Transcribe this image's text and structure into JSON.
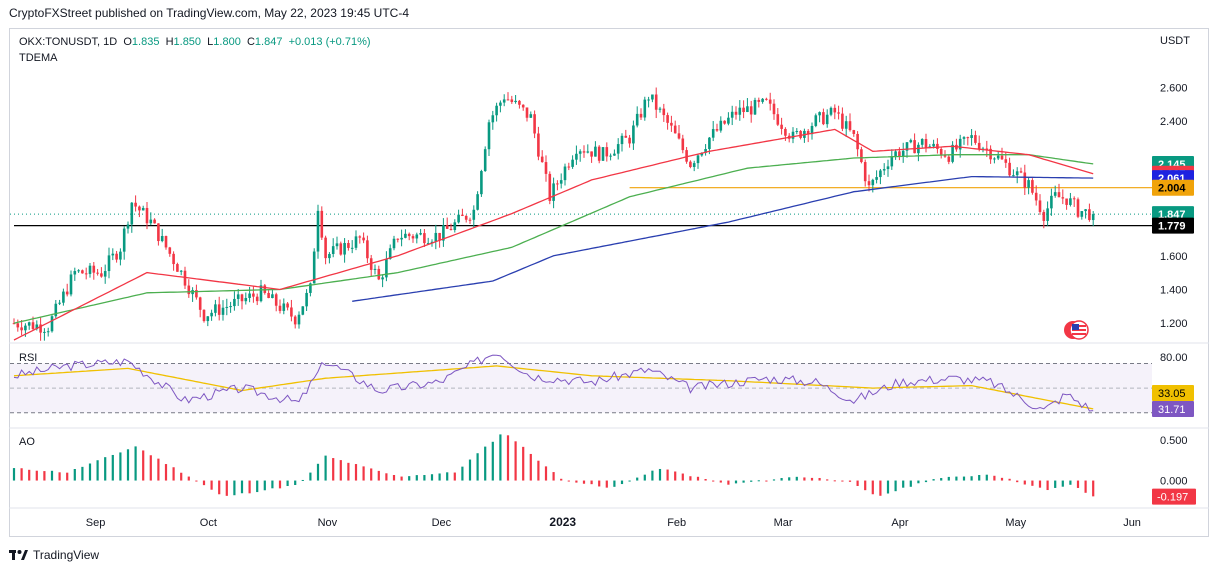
{
  "header": {
    "attribution": "CryptoFXStreet published on TradingView.com, May 22, 2023 19:45 UTC-4"
  },
  "legend": {
    "symbol": "OKX:TONUSDT, 1D",
    "open_label": "O",
    "open": "1.835",
    "high_label": "H",
    "high": "1.850",
    "low_label": "L",
    "low": "1.800",
    "close_label": "C",
    "close": "1.847",
    "change": "+0.013 (+0.71%)",
    "indicator": "TDEMA"
  },
  "footer": {
    "brand": "TradingView",
    "logo_icon": "tradingview-logo-icon"
  },
  "flag_icon": "us-flag-icon",
  "chart_data": [
    {
      "type": "candlestick",
      "pane": "price",
      "currency_label": "USDT",
      "y_ticks": [
        1.2,
        1.4,
        1.6,
        1.8,
        2.0,
        2.2,
        2.4,
        2.6
      ],
      "y_tick_labels": [
        "1.200",
        "1.400",
        "1.600",
        "",
        "",
        "",
        "2.400",
        "2.600"
      ],
      "ylim": [
        1.1,
        2.94
      ],
      "x_ticks": [
        "Sep",
        "Oct",
        "Nov",
        "Dec",
        "2023",
        "Feb",
        "Mar",
        "Apr",
        "May",
        "Jun"
      ],
      "x_start": "2022-08-11",
      "colors": {
        "up": "#089981",
        "down": "#f23645",
        "ema_red": "#f23645",
        "ema_green": "#4caf50",
        "ema_blue": "#2a3fb0",
        "level": "#f0a30a"
      },
      "price_labels": [
        {
          "value": "2.145",
          "color": "#089981"
        },
        {
          "value": "2.087",
          "color": "#f23645"
        },
        {
          "value": "2.061",
          "color": "#1e22e0"
        },
        {
          "value": "2.004",
          "color": "#f0a30a"
        },
        {
          "value": "1.847",
          "color": "#089981"
        },
        {
          "value": "1.779",
          "color": "#000000"
        }
      ],
      "horizontal_levels": [
        {
          "value": 2.004,
          "color": "#f0a30a",
          "from": "2023-01-20"
        },
        {
          "value": 1.779,
          "color": "#000000",
          "from": "2022-08-11"
        }
      ],
      "close_anchors": [
        [
          "2022-08-11",
          1.2
        ],
        [
          "2022-08-20",
          1.18
        ],
        [
          "2022-08-27",
          1.5
        ],
        [
          "2022-09-03",
          1.5
        ],
        [
          "2022-09-08",
          1.65
        ],
        [
          "2022-09-11",
          1.92
        ],
        [
          "2022-09-16",
          1.8
        ],
        [
          "2022-09-24",
          1.5
        ],
        [
          "2022-09-30",
          1.25
        ],
        [
          "2022-10-06",
          1.3
        ],
        [
          "2022-10-15",
          1.38
        ],
        [
          "2022-10-24",
          1.23
        ],
        [
          "2022-10-28",
          1.4
        ],
        [
          "2022-10-30",
          1.9
        ],
        [
          "2022-11-01",
          1.6
        ],
        [
          "2022-11-10",
          1.7
        ],
        [
          "2022-11-15",
          1.45
        ],
        [
          "2022-11-20",
          1.72
        ],
        [
          "2022-12-01",
          1.72
        ],
        [
          "2022-12-10",
          1.87
        ],
        [
          "2022-12-14",
          2.4
        ],
        [
          "2022-12-18",
          2.55
        ],
        [
          "2022-12-25",
          2.42
        ],
        [
          "2022-12-30",
          1.95
        ],
        [
          "2023-01-06",
          2.25
        ],
        [
          "2023-01-13",
          2.2
        ],
        [
          "2023-01-20",
          2.3
        ],
        [
          "2023-01-25",
          2.55
        ],
        [
          "2023-01-31",
          2.35
        ],
        [
          "2023-02-05",
          2.15
        ],
        [
          "2023-02-10",
          2.3
        ],
        [
          "2023-02-17",
          2.45
        ],
        [
          "2023-02-25",
          2.5
        ],
        [
          "2023-03-04",
          2.3
        ],
        [
          "2023-03-10",
          2.4
        ],
        [
          "2023-03-15",
          2.45
        ],
        [
          "2023-03-20",
          2.3
        ],
        [
          "2023-03-24",
          2.0
        ],
        [
          "2023-03-30",
          2.2
        ],
        [
          "2023-04-07",
          2.27
        ],
        [
          "2023-04-14",
          2.2
        ],
        [
          "2023-04-20",
          2.3
        ],
        [
          "2023-04-26",
          2.2
        ],
        [
          "2023-05-01",
          2.1
        ],
        [
          "2023-05-05",
          2.02
        ],
        [
          "2023-05-09",
          1.85
        ],
        [
          "2023-05-12",
          1.95
        ],
        [
          "2023-05-15",
          1.94
        ],
        [
          "2023-05-18",
          1.87
        ],
        [
          "2023-05-22",
          1.847
        ]
      ],
      "ema_red_anchors": [
        [
          "2022-08-11",
          1.1
        ],
        [
          "2022-09-15",
          1.5
        ],
        [
          "2022-10-20",
          1.4
        ],
        [
          "2022-11-20",
          1.6
        ],
        [
          "2022-12-20",
          1.85
        ],
        [
          "2023-01-10",
          2.05
        ],
        [
          "2023-02-10",
          2.22
        ],
        [
          "2023-03-15",
          2.35
        ],
        [
          "2023-03-25",
          2.22
        ],
        [
          "2023-04-15",
          2.25
        ],
        [
          "2023-05-05",
          2.2
        ],
        [
          "2023-05-22",
          2.087
        ]
      ],
      "ema_green_anchors": [
        [
          "2022-08-11",
          1.2
        ],
        [
          "2022-09-15",
          1.38
        ],
        [
          "2022-10-20",
          1.4
        ],
        [
          "2022-11-20",
          1.5
        ],
        [
          "2022-12-20",
          1.65
        ],
        [
          "2023-01-20",
          1.95
        ],
        [
          "2023-02-20",
          2.12
        ],
        [
          "2023-03-20",
          2.18
        ],
        [
          "2023-04-15",
          2.2
        ],
        [
          "2023-05-05",
          2.2
        ],
        [
          "2023-05-22",
          2.145
        ]
      ],
      "ema_blue_anchors": [
        [
          "2022-11-08",
          1.33
        ],
        [
          "2022-12-15",
          1.45
        ],
        [
          "2022-12-31",
          1.6
        ],
        [
          "2023-02-15",
          1.8
        ],
        [
          "2023-03-20",
          1.98
        ],
        [
          "2023-04-20",
          2.07
        ],
        [
          "2023-05-22",
          2.061
        ]
      ]
    },
    {
      "type": "line",
      "pane": "rsi",
      "title": "RSI",
      "y_tick_labels": [
        "80.00",
        "",
        ""
      ],
      "ylim": [
        20,
        85
      ],
      "bands": [
        70,
        30
      ],
      "value_labels": [
        {
          "value": "33.05",
          "color": "#f0c000"
        },
        {
          "value": "31.71",
          "color": "#7e57c2"
        }
      ],
      "rsi_anchors": [
        [
          "2022-08-11",
          60
        ],
        [
          "2022-08-25",
          68
        ],
        [
          "2022-09-10",
          72
        ],
        [
          "2022-09-25",
          40
        ],
        [
          "2022-10-10",
          50
        ],
        [
          "2022-10-25",
          38
        ],
        [
          "2022-11-01",
          72
        ],
        [
          "2022-11-15",
          48
        ],
        [
          "2022-12-01",
          55
        ],
        [
          "2022-12-16",
          80
        ],
        [
          "2022-12-25",
          60
        ],
        [
          "2023-01-10",
          55
        ],
        [
          "2023-01-25",
          65
        ],
        [
          "2023-02-05",
          50
        ],
        [
          "2023-02-25",
          58
        ],
        [
          "2023-03-10",
          55
        ],
        [
          "2023-03-20",
          40
        ],
        [
          "2023-04-01",
          55
        ],
        [
          "2023-04-15",
          58
        ],
        [
          "2023-04-25",
          55
        ],
        [
          "2023-05-09",
          32
        ],
        [
          "2023-05-15",
          45
        ],
        [
          "2023-05-22",
          31.71
        ]
      ],
      "signal_anchors": [
        [
          "2022-08-11",
          60
        ],
        [
          "2022-09-10",
          66
        ],
        [
          "2022-10-10",
          48
        ],
        [
          "2022-11-01",
          58
        ],
        [
          "2022-12-16",
          68
        ],
        [
          "2023-01-10",
          60
        ],
        [
          "2023-02-15",
          56
        ],
        [
          "2023-03-25",
          50
        ],
        [
          "2023-04-20",
          52
        ],
        [
          "2023-05-10",
          40
        ],
        [
          "2023-05-22",
          33.05
        ]
      ]
    },
    {
      "type": "bar",
      "pane": "ao",
      "title": "AO",
      "y_tick_labels": [
        "0.500",
        "0.000"
      ],
      "ylim": [
        -0.3,
        0.62
      ],
      "value_labels": [
        {
          "value": "-0.197",
          "color": "#f23645"
        }
      ],
      "ao_anchors": [
        [
          "2022-08-11",
          0.15
        ],
        [
          "2022-08-25",
          0.1
        ],
        [
          "2022-09-12",
          0.42
        ],
        [
          "2022-09-28",
          0.0
        ],
        [
          "2022-10-05",
          -0.2
        ],
        [
          "2022-10-25",
          -0.05
        ],
        [
          "2022-11-01",
          0.3
        ],
        [
          "2022-11-20",
          0.05
        ],
        [
          "2022-12-05",
          0.1
        ],
        [
          "2022-12-18",
          0.6
        ],
        [
          "2023-01-02",
          0.02
        ],
        [
          "2023-01-15",
          -0.1
        ],
        [
          "2023-01-28",
          0.15
        ],
        [
          "2023-02-15",
          -0.05
        ],
        [
          "2023-03-05",
          0.05
        ],
        [
          "2023-03-18",
          0.0
        ],
        [
          "2023-03-26",
          -0.2
        ],
        [
          "2023-04-10",
          0.02
        ],
        [
          "2023-04-25",
          0.08
        ],
        [
          "2023-05-10",
          -0.12
        ],
        [
          "2023-05-16",
          -0.05
        ],
        [
          "2023-05-22",
          -0.197
        ]
      ]
    }
  ]
}
